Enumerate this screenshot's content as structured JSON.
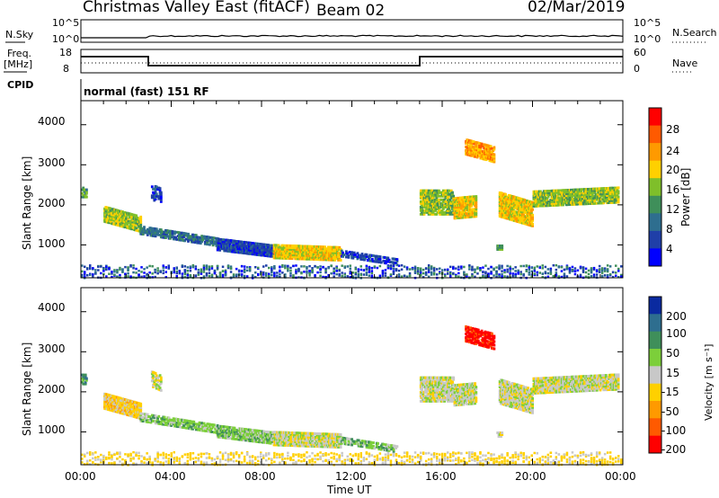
{
  "header": {
    "title": "Christmas Valley East (fitACF)",
    "beam": "Beam 02",
    "date": "02/Mar/2019"
  },
  "sky_panel": {
    "left_label": "N.Sky",
    "right_label": "N.Search",
    "left_ticks": [
      "10^5",
      "10^0"
    ],
    "right_ticks": [
      "10^5",
      "10^0"
    ]
  },
  "freq_panel": {
    "left_label_1": "Freq.",
    "left_label_2": "[MHz]",
    "right_label": "Nave",
    "left_ticks": [
      "18",
      "8"
    ],
    "right_ticks": [
      "60",
      "0"
    ]
  },
  "cpid": {
    "label": "CPID",
    "value": "normal (fast) 151 RF"
  },
  "colors": {
    "power_scale": [
      "#0000ff",
      "#1f3fa8",
      "#2e6e8f",
      "#3f8f5a",
      "#7fbf2a",
      "#ffd000",
      "#ff9a00",
      "#ff5a00",
      "#ff0000"
    ],
    "velocity_scale": [
      "#0a2aa0",
      "#2e6e8f",
      "#3f8f5a",
      "#7ccf3a",
      "#c8c8c8",
      "#ffd000",
      "#ff9a00",
      "#ff5a00",
      "#ff0000"
    ]
  },
  "chart_data": [
    {
      "type": "heatmap",
      "name": "power",
      "ylabel": "Slant Range [km]",
      "yticks": [
        "4000",
        "3000",
        "2000",
        "1000"
      ],
      "ylim": [
        180,
        4600
      ],
      "xlim": [
        "00:00",
        "24:00"
      ],
      "colorbar": {
        "label": "Power [dB]",
        "ticks": [
          "28",
          "24",
          "20",
          "16",
          "12",
          "8",
          "4"
        ],
        "range": [
          0,
          30
        ]
      }
    },
    {
      "type": "heatmap",
      "name": "velocity",
      "ylabel": "Slant Range [km]",
      "yticks": [
        "4000",
        "3000",
        "2000",
        "1000"
      ],
      "ylim": [
        180,
        4600
      ],
      "xlim": [
        "00:00",
        "24:00"
      ],
      "xticks": [
        "00:00",
        "04:00",
        "08:00",
        "12:00",
        "16:00",
        "20:00",
        "00:00"
      ],
      "xlabel": "Time UT",
      "colorbar": {
        "label": "Velocity [m s⁻¹]",
        "ticks": [
          "200",
          "100",
          "50",
          "15",
          "-15",
          "-50",
          "-100",
          "-200"
        ],
        "range": [
          -250,
          250
        ]
      }
    }
  ]
}
